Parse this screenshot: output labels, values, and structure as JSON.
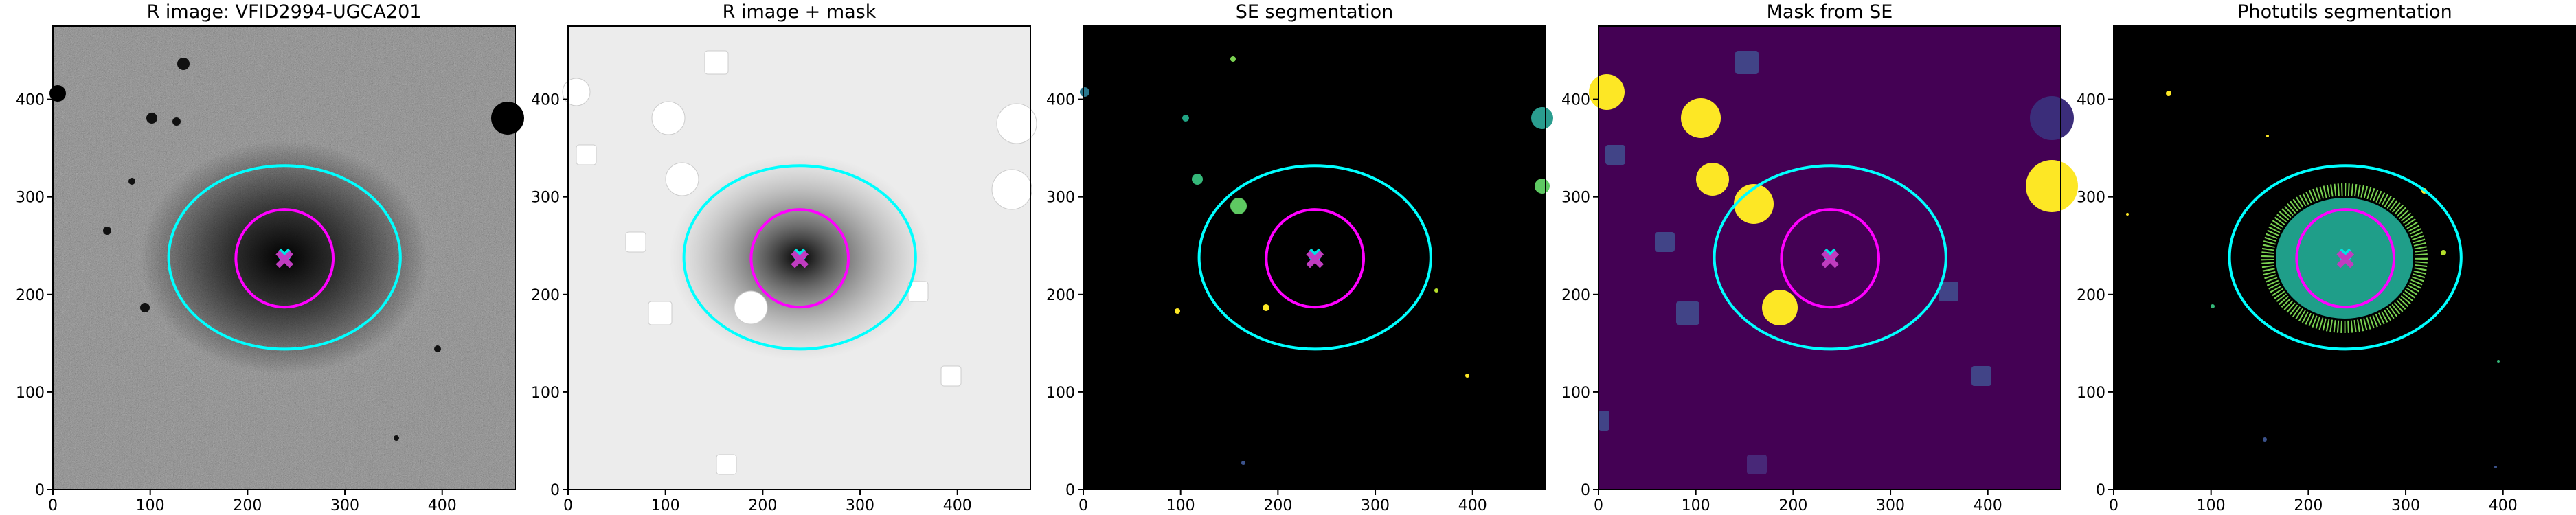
{
  "chart_data": [
    {
      "type": "image",
      "title": "R image: VFID2994-UGCA201",
      "background": "#6a6a6a",
      "xlim": [
        0,
        475
      ],
      "ylim": [
        0,
        475
      ],
      "xticks": [
        0,
        100,
        200,
        300,
        400
      ],
      "yticks": [
        0,
        100,
        200,
        300,
        400
      ],
      "ellipse": {
        "x": 238,
        "y": 238,
        "rx": 119,
        "ry": 94,
        "color": "#00ffff"
      },
      "circle": {
        "x": 238,
        "y": 237,
        "r": 50,
        "color": "#ff00ff"
      },
      "markers": [
        {
          "x": 238,
          "y": 241,
          "color": "#00e5e5"
        },
        {
          "x": 238,
          "y": 236,
          "color": "#c03cc0"
        }
      ]
    },
    {
      "type": "image",
      "title": "R image + mask",
      "background": "#ececec",
      "xlim": [
        0,
        475
      ],
      "ylim": [
        0,
        475
      ],
      "xticks": [
        0,
        100,
        200,
        300,
        400
      ],
      "yticks": [
        0,
        100,
        200,
        300,
        400
      ],
      "ellipse": {
        "x": 238,
        "y": 238,
        "rx": 119,
        "ry": 94,
        "color": "#00ffff"
      },
      "circle": {
        "x": 238,
        "y": 237,
        "r": 50,
        "color": "#ff00ff"
      },
      "markers": [
        {
          "x": 238,
          "y": 241,
          "color": "#00e5e5"
        },
        {
          "x": 238,
          "y": 236,
          "color": "#c03cc0"
        }
      ]
    },
    {
      "type": "image",
      "title": "SE segmentation",
      "background": "#000000",
      "xlim": [
        0,
        475
      ],
      "ylim": [
        0,
        475
      ],
      "xticks": [
        0,
        100,
        200,
        300,
        400
      ],
      "yticks": [
        0,
        100,
        200,
        300,
        400
      ],
      "ellipse": {
        "x": 238,
        "y": 238,
        "rx": 119,
        "ry": 94,
        "color": "#00ffff"
      },
      "circle": {
        "x": 238,
        "y": 237,
        "r": 50,
        "color": "#ff00ff"
      },
      "markers": [
        {
          "x": 238,
          "y": 241,
          "color": "#00e5e5"
        },
        {
          "x": 238,
          "y": 236,
          "color": "#c03cc0"
        }
      ]
    },
    {
      "type": "image",
      "title": "Mask from SE",
      "background": "#440154",
      "xlim": [
        0,
        475
      ],
      "ylim": [
        0,
        475
      ],
      "xticks": [
        0,
        100,
        200,
        300,
        400
      ],
      "yticks": [
        0,
        100,
        200,
        300,
        400
      ],
      "ellipse": {
        "x": 238,
        "y": 238,
        "rx": 119,
        "ry": 94,
        "color": "#00ffff"
      },
      "circle": {
        "x": 238,
        "y": 237,
        "r": 50,
        "color": "#ff00ff"
      },
      "markers": [
        {
          "x": 238,
          "y": 241,
          "color": "#00e5e5"
        },
        {
          "x": 238,
          "y": 236,
          "color": "#c03cc0"
        }
      ]
    },
    {
      "type": "image",
      "title": "Photutils segmentation",
      "background": "#000000",
      "xlim": [
        0,
        475
      ],
      "ylim": [
        0,
        475
      ],
      "xticks": [
        0,
        100,
        200,
        300,
        400
      ],
      "yticks": [
        0,
        100,
        200,
        300,
        400
      ],
      "ellipse": {
        "x": 238,
        "y": 238,
        "rx": 119,
        "ry": 94,
        "color": "#00ffff"
      },
      "circle": {
        "x": 238,
        "y": 237,
        "r": 50,
        "color": "#ff00ff"
      },
      "markers": [
        {
          "x": 238,
          "y": 241,
          "color": "#00e5e5"
        },
        {
          "x": 238,
          "y": 236,
          "color": "#c03cc0"
        }
      ]
    }
  ]
}
